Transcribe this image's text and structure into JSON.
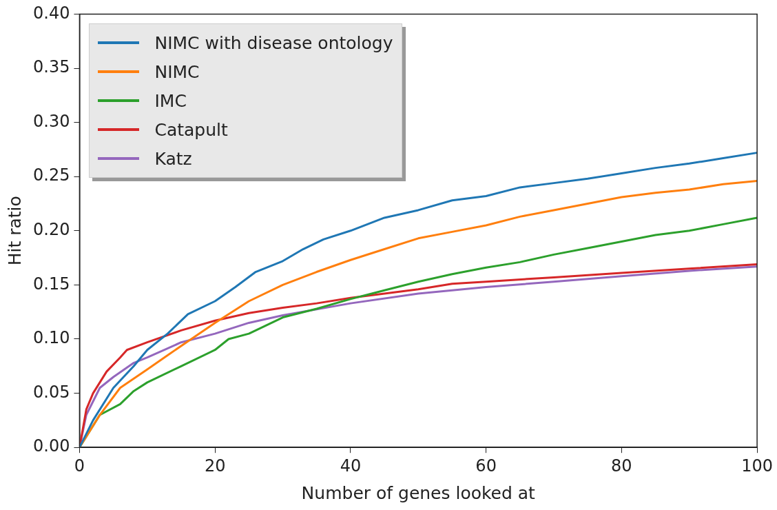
{
  "chart_data": {
    "type": "line",
    "xlabel": "Number of genes looked at",
    "ylabel": "Hit ratio",
    "xlim": [
      0,
      100
    ],
    "xticks": [
      0,
      20,
      40,
      60,
      80,
      100
    ],
    "ylim": [
      0,
      0.4
    ],
    "yticks": [
      {
        "value": 0,
        "label": "0.00"
      },
      {
        "value": 0.05,
        "label": "0.05"
      },
      {
        "value": 0.1,
        "label": "0.10"
      },
      {
        "value": 0.15,
        "label": "0.15"
      },
      {
        "value": 0.2,
        "label": "0.20"
      },
      {
        "value": 0.25,
        "label": "0.25"
      },
      {
        "value": 0.3,
        "label": "0.30"
      },
      {
        "value": 0.35,
        "label": "0.35"
      },
      {
        "value": 0.4,
        "label": "0.40"
      }
    ],
    "grid": false,
    "legend": "top left",
    "marker": "none",
    "line_style": "solid",
    "series": [
      {
        "name": "NIMC with disease ontology",
        "color": "#1f77b4",
        "x": [
          0,
          2,
          5,
          8,
          10,
          13,
          16,
          20,
          23,
          26,
          30,
          33,
          36,
          40,
          45,
          50,
          55,
          60,
          65,
          70,
          75,
          80,
          85,
          90,
          95,
          100
        ],
        "values": [
          0,
          0.025,
          0.055,
          0.075,
          0.09,
          0.105,
          0.123,
          0.135,
          0.148,
          0.162,
          0.172,
          0.183,
          0.192,
          0.2,
          0.212,
          0.219,
          0.228,
          0.232,
          0.24,
          0.244,
          0.248,
          0.253,
          0.258,
          0.262,
          0.267,
          0.272
        ]
      },
      {
        "name": "NIMC",
        "color": "#ff7f0e",
        "x": [
          0,
          3,
          6,
          10,
          13,
          16,
          20,
          25,
          30,
          35,
          40,
          45,
          50,
          55,
          60,
          65,
          70,
          75,
          80,
          85,
          90,
          95,
          100
        ],
        "values": [
          0,
          0.03,
          0.055,
          0.072,
          0.085,
          0.098,
          0.115,
          0.135,
          0.15,
          0.162,
          0.173,
          0.183,
          0.193,
          0.199,
          0.205,
          0.213,
          0.219,
          0.225,
          0.231,
          0.235,
          0.238,
          0.243,
          0.246
        ]
      },
      {
        "name": "IMC",
        "color": "#2ca02c",
        "x": [
          0,
          3,
          6,
          8,
          10,
          15,
          20,
          22,
          25,
          30,
          35,
          40,
          45,
          50,
          55,
          60,
          65,
          70,
          75,
          80,
          85,
          90,
          95,
          100
        ],
        "values": [
          0,
          0.03,
          0.04,
          0.052,
          0.06,
          0.075,
          0.09,
          0.1,
          0.105,
          0.12,
          0.128,
          0.137,
          0.145,
          0.153,
          0.16,
          0.166,
          0.171,
          0.178,
          0.184,
          0.19,
          0.196,
          0.2,
          0.206,
          0.212
        ]
      },
      {
        "name": "Catapult",
        "color": "#d62728",
        "x": [
          0,
          1,
          2,
          4,
          6,
          7,
          10,
          15,
          20,
          25,
          30,
          35,
          40,
          50,
          55,
          60,
          70,
          80,
          90,
          100
        ],
        "values": [
          0,
          0.035,
          0.05,
          0.07,
          0.083,
          0.09,
          0.097,
          0.108,
          0.117,
          0.124,
          0.129,
          0.133,
          0.138,
          0.146,
          0.151,
          0.153,
          0.157,
          0.161,
          0.165,
          0.169
        ]
      },
      {
        "name": "Katz",
        "color": "#9467bd",
        "x": [
          0,
          1,
          3,
          5,
          8,
          10,
          15,
          20,
          25,
          30,
          40,
          50,
          60,
          70,
          80,
          90,
          100
        ],
        "values": [
          0,
          0.03,
          0.055,
          0.065,
          0.078,
          0.083,
          0.097,
          0.105,
          0.115,
          0.122,
          0.133,
          0.142,
          0.148,
          0.153,
          0.158,
          0.163,
          0.167
        ]
      }
    ]
  }
}
